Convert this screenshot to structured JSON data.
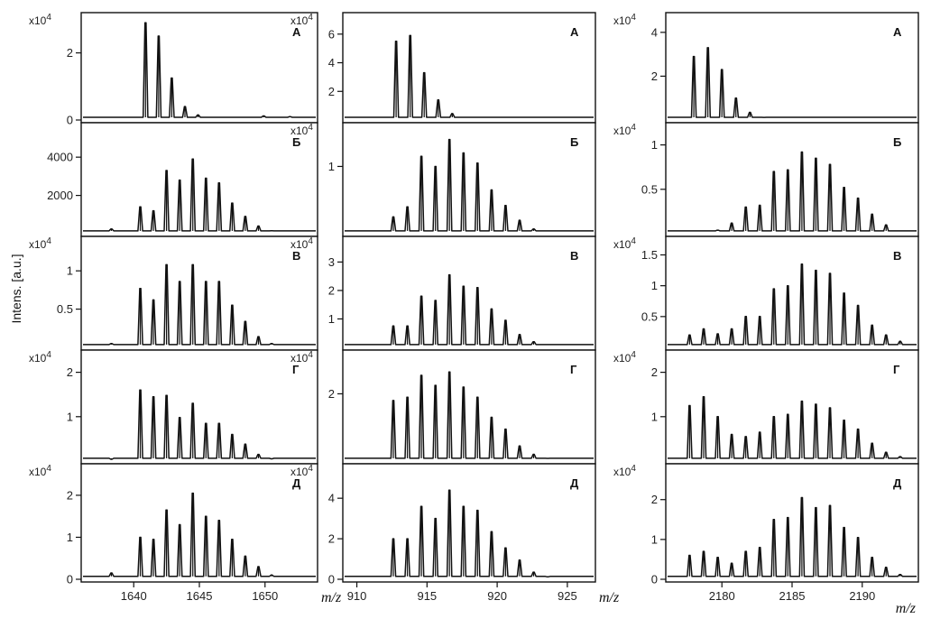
{
  "chart_data": {
    "type": "line",
    "ylabel": "Intens. [a.u.]",
    "xlabel": "m/z",
    "grid": false,
    "columns": [
      {
        "xlim": [
          1636,
          1654
        ],
        "xticks": [
          1640,
          1645,
          1650
        ],
        "panels": [
          {
            "label": "А",
            "multiplier": "x10",
            "multiplier_exp": "4",
            "ylim": [
              0,
              3.2
            ],
            "yticks": [
              0,
              2
            ],
            "peaks": [
              [
                1640.9,
                2.9
              ],
              [
                1641.9,
                2.5
              ],
              [
                1642.9,
                1.25
              ],
              [
                1643.9,
                0.4
              ],
              [
                1644.9,
                0.15
              ],
              [
                1649.9,
                0.12
              ],
              [
                1651.9,
                0.1
              ]
            ]
          },
          {
            "label": "Б",
            "multiplier": "",
            "multiplier_exp": "",
            "ylim": [
              0,
              5800
            ],
            "yticks": [
              2000,
              4000
            ],
            "peaks": [
              [
                1638.3,
                250
              ],
              [
                1640.5,
                1400
              ],
              [
                1641.5,
                1200
              ],
              [
                1642.5,
                3300
              ],
              [
                1643.5,
                2800
              ],
              [
                1644.5,
                3900
              ],
              [
                1645.5,
                2900
              ],
              [
                1646.5,
                2650
              ],
              [
                1647.5,
                1600
              ],
              [
                1648.5,
                900
              ],
              [
                1649.5,
                400
              ],
              [
                1650.5,
                150
              ]
            ]
          },
          {
            "label": "В",
            "multiplier": "x10",
            "multiplier_exp": "4",
            "ylim": [
              0,
              1.45
            ],
            "yticks": [
              0.5,
              1.0
            ],
            "peaks": [
              [
                1638.3,
                0.05
              ],
              [
                1640.5,
                0.77
              ],
              [
                1641.5,
                0.62
              ],
              [
                1642.5,
                1.08
              ],
              [
                1643.5,
                0.86
              ],
              [
                1644.5,
                1.08
              ],
              [
                1645.5,
                0.86
              ],
              [
                1646.5,
                0.86
              ],
              [
                1647.5,
                0.55
              ],
              [
                1648.5,
                0.34
              ],
              [
                1649.5,
                0.14
              ],
              [
                1650.5,
                0.05
              ]
            ]
          },
          {
            "label": "Г",
            "multiplier": "x10",
            "multiplier_exp": "4",
            "ylim": [
              0,
              2.5
            ],
            "yticks": [
              1,
              2
            ],
            "peaks": [
              [
                1638.3,
                0.04
              ],
              [
                1640.5,
                1.6
              ],
              [
                1641.5,
                1.45
              ],
              [
                1642.5,
                1.48
              ],
              [
                1643.5,
                0.98
              ],
              [
                1644.5,
                1.3
              ],
              [
                1645.5,
                0.85
              ],
              [
                1646.5,
                0.85
              ],
              [
                1647.5,
                0.6
              ],
              [
                1648.5,
                0.38
              ],
              [
                1649.5,
                0.15
              ],
              [
                1650.5,
                0.05
              ]
            ]
          },
          {
            "label": "Д",
            "multiplier": "x10",
            "multiplier_exp": "4",
            "ylim": [
              0,
              2.75
            ],
            "yticks": [
              0,
              1,
              2
            ],
            "peaks": [
              [
                1638.3,
                0.15
              ],
              [
                1640.5,
                1.0
              ],
              [
                1641.5,
                0.95
              ],
              [
                1642.5,
                1.65
              ],
              [
                1643.5,
                1.3
              ],
              [
                1644.5,
                2.05
              ],
              [
                1645.5,
                1.5
              ],
              [
                1646.5,
                1.4
              ],
              [
                1647.5,
                0.95
              ],
              [
                1648.5,
                0.55
              ],
              [
                1649.5,
                0.3
              ],
              [
                1650.5,
                0.1
              ]
            ]
          }
        ]
      },
      {
        "xlim": [
          909,
          927
        ],
        "xticks": [
          910,
          915,
          920,
          925
        ],
        "panels": [
          {
            "label": "А",
            "multiplier": "x10",
            "multiplier_exp": "4",
            "ylim": [
              0,
              7.5
            ],
            "yticks": [
              2,
              4,
              6
            ],
            "peaks": [
              [
                912.8,
                5.5
              ],
              [
                913.8,
                5.9
              ],
              [
                914.8,
                3.3
              ],
              [
                915.8,
                1.4
              ],
              [
                916.8,
                0.45
              ]
            ]
          },
          {
            "label": "Б",
            "multiplier": "x10",
            "multiplier_exp": "4",
            "ylim": [
              0,
              1.65
            ],
            "yticks": [
              1
            ],
            "peaks": [
              [
                912.6,
                0.25
              ],
              [
                913.6,
                0.4
              ],
              [
                914.6,
                1.15
              ],
              [
                915.6,
                1.0
              ],
              [
                916.6,
                1.4
              ],
              [
                917.6,
                1.2
              ],
              [
                918.6,
                1.05
              ],
              [
                919.6,
                0.65
              ],
              [
                920.6,
                0.42
              ],
              [
                921.6,
                0.2
              ],
              [
                922.6,
                0.07
              ]
            ]
          },
          {
            "label": "В",
            "multiplier": "x10",
            "multiplier_exp": "4",
            "ylim": [
              0,
              3.9
            ],
            "yticks": [
              1,
              2,
              3
            ],
            "peaks": [
              [
                912.6,
                0.75
              ],
              [
                913.6,
                0.75
              ],
              [
                914.6,
                1.8
              ],
              [
                915.6,
                1.65
              ],
              [
                916.6,
                2.55
              ],
              [
                917.6,
                2.15
              ],
              [
                918.6,
                2.1
              ],
              [
                919.6,
                1.35
              ],
              [
                920.6,
                0.95
              ],
              [
                921.6,
                0.45
              ],
              [
                922.6,
                0.2
              ]
            ]
          },
          {
            "label": "Г",
            "multiplier": "x10",
            "multiplier_exp": "4",
            "ylim": [
              0,
              3.3
            ],
            "yticks": [
              2
            ],
            "peaks": [
              [
                912.6,
                1.8
              ],
              [
                913.6,
                1.9
              ],
              [
                914.6,
                2.55
              ],
              [
                915.6,
                2.25
              ],
              [
                916.6,
                2.65
              ],
              [
                917.6,
                2.2
              ],
              [
                918.6,
                1.9
              ],
              [
                919.6,
                1.3
              ],
              [
                920.6,
                0.95
              ],
              [
                921.6,
                0.45
              ],
              [
                922.6,
                0.2
              ],
              [
                923.6,
                0.08
              ]
            ]
          },
          {
            "label": "Д",
            "multiplier": "x10",
            "multiplier_exp": "4",
            "ylim": [
              0,
              5.7
            ],
            "yticks": [
              0,
              2,
              4
            ],
            "peaks": [
              [
                912.6,
                2.0
              ],
              [
                913.6,
                2.0
              ],
              [
                914.6,
                3.6
              ],
              [
                915.6,
                3.0
              ],
              [
                916.6,
                4.4
              ],
              [
                917.6,
                3.6
              ],
              [
                918.6,
                3.4
              ],
              [
                919.6,
                2.35
              ],
              [
                920.6,
                1.55
              ],
              [
                921.6,
                0.95
              ],
              [
                922.6,
                0.35
              ],
              [
                923.6,
                0.12
              ]
            ]
          }
        ]
      },
      {
        "xlim": [
          2176,
          2194
        ],
        "xticks": [
          2180,
          2185,
          2190
        ],
        "panels": [
          {
            "label": "А",
            "multiplier": "x10",
            "multiplier_exp": "4",
            "ylim": [
              0,
              4.9
            ],
            "yticks": [
              2,
              4
            ],
            "peaks": [
              [
                2178.0,
                2.9
              ],
              [
                2179.0,
                3.3
              ],
              [
                2180.0,
                2.3
              ],
              [
                2181.0,
                1.0
              ],
              [
                2182.0,
                0.35
              ],
              [
                2183.0,
                0.12
              ]
            ]
          },
          {
            "label": "Б",
            "multiplier": "x10",
            "multiplier_exp": "4",
            "ylim": [
              0,
              1.25
            ],
            "yticks": [
              0.5,
              1.0
            ],
            "peaks": [
              [
                2179.7,
                0.04
              ],
              [
                2180.7,
                0.12
              ],
              [
                2181.7,
                0.3
              ],
              [
                2182.7,
                0.32
              ],
              [
                2183.7,
                0.7
              ],
              [
                2184.7,
                0.72
              ],
              [
                2185.7,
                0.92
              ],
              [
                2186.7,
                0.85
              ],
              [
                2187.7,
                0.78
              ],
              [
                2188.7,
                0.52
              ],
              [
                2189.7,
                0.4
              ],
              [
                2190.7,
                0.22
              ],
              [
                2191.7,
                0.1
              ]
            ]
          },
          {
            "label": "В",
            "multiplier": "x10",
            "multiplier_exp": "4",
            "ylim": [
              0,
              1.8
            ],
            "yticks": [
              0.5,
              1.0,
              1.5
            ],
            "peaks": [
              [
                2177.7,
                0.2
              ],
              [
                2178.7,
                0.3
              ],
              [
                2179.7,
                0.22
              ],
              [
                2180.7,
                0.3
              ],
              [
                2181.7,
                0.5
              ],
              [
                2182.7,
                0.5
              ],
              [
                2183.7,
                0.95
              ],
              [
                2184.7,
                1.0
              ],
              [
                2185.7,
                1.35
              ],
              [
                2186.7,
                1.25
              ],
              [
                2187.7,
                1.2
              ],
              [
                2188.7,
                0.88
              ],
              [
                2189.7,
                0.68
              ],
              [
                2190.7,
                0.36
              ],
              [
                2191.7,
                0.2
              ],
              [
                2192.7,
                0.1
              ]
            ]
          },
          {
            "label": "Г",
            "multiplier": "x10",
            "multiplier_exp": "4",
            "ylim": [
              0,
              2.5
            ],
            "yticks": [
              1,
              2
            ],
            "peaks": [
              [
                2177.7,
                1.25
              ],
              [
                2178.7,
                1.45
              ],
              [
                2179.7,
                1.0
              ],
              [
                2180.7,
                0.6
              ],
              [
                2181.7,
                0.55
              ],
              [
                2182.7,
                0.65
              ],
              [
                2183.7,
                1.0
              ],
              [
                2184.7,
                1.05
              ],
              [
                2185.7,
                1.35
              ],
              [
                2186.7,
                1.28
              ],
              [
                2187.7,
                1.2
              ],
              [
                2188.7,
                0.92
              ],
              [
                2189.7,
                0.72
              ],
              [
                2190.7,
                0.4
              ],
              [
                2191.7,
                0.2
              ],
              [
                2192.7,
                0.1
              ]
            ]
          },
          {
            "label": "Д",
            "multiplier": "x10",
            "multiplier_exp": "4",
            "ylim": [
              0,
              2.9
            ],
            "yticks": [
              0,
              1,
              2
            ],
            "peaks": [
              [
                2177.7,
                0.6
              ],
              [
                2178.7,
                0.7
              ],
              [
                2179.7,
                0.55
              ],
              [
                2180.7,
                0.4
              ],
              [
                2181.7,
                0.7
              ],
              [
                2182.7,
                0.8
              ],
              [
                2183.7,
                1.5
              ],
              [
                2184.7,
                1.55
              ],
              [
                2185.7,
                2.05
              ],
              [
                2186.7,
                1.8
              ],
              [
                2187.7,
                1.85
              ],
              [
                2188.7,
                1.3
              ],
              [
                2189.7,
                1.05
              ],
              [
                2190.7,
                0.55
              ],
              [
                2191.7,
                0.3
              ],
              [
                2192.7,
                0.12
              ]
            ]
          }
        ]
      }
    ]
  }
}
